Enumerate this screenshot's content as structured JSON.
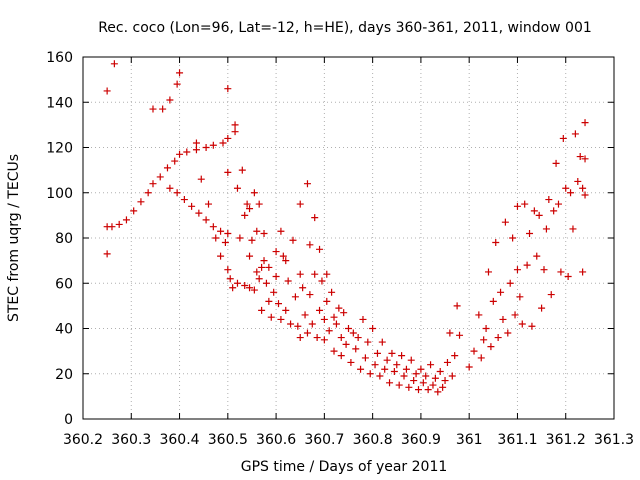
{
  "chart_data": {
    "type": "scatter",
    "title": "Rec. coco (Lon=96, Lat=-12, h=HE), days 360-361, 2011, window 001",
    "xlabel": "GPS time / Days of year 2011",
    "ylabel": "STEC from uqrg / TECUs",
    "xlim": [
      360.2,
      361.3
    ],
    "ylim": [
      0,
      160
    ],
    "xticks": [
      "360.2",
      "360.3",
      "360.4",
      "360.5",
      "360.6",
      "360.7",
      "360.8",
      "360.9",
      "361",
      "361.1",
      "361.2",
      "361.3"
    ],
    "yticks": [
      "0",
      "20",
      "40",
      "60",
      "80",
      "100",
      "120",
      "140",
      "160"
    ],
    "grid": true,
    "marker": "+",
    "color": "#cc0000",
    "points": [
      [
        360.25,
        145
      ],
      [
        360.25,
        73
      ],
      [
        360.25,
        85
      ],
      [
        360.265,
        157
      ],
      [
        360.26,
        85
      ],
      [
        360.275,
        86
      ],
      [
        360.29,
        88
      ],
      [
        360.305,
        92
      ],
      [
        360.32,
        96
      ],
      [
        360.335,
        100
      ],
      [
        360.345,
        104
      ],
      [
        360.345,
        137
      ],
      [
        360.365,
        137
      ],
      [
        360.36,
        107
      ],
      [
        360.375,
        111
      ],
      [
        360.38,
        141
      ],
      [
        360.38,
        102
      ],
      [
        360.39,
        114
      ],
      [
        360.395,
        148
      ],
      [
        360.4,
        153
      ],
      [
        360.4,
        117
      ],
      [
        360.395,
        100
      ],
      [
        360.41,
        97
      ],
      [
        360.415,
        118
      ],
      [
        360.425,
        94
      ],
      [
        360.435,
        122
      ],
      [
        360.435,
        119
      ],
      [
        360.44,
        91
      ],
      [
        360.445,
        106
      ],
      [
        360.455,
        120
      ],
      [
        360.455,
        88
      ],
      [
        360.46,
        95
      ],
      [
        360.47,
        121
      ],
      [
        360.47,
        85
      ],
      [
        360.475,
        80
      ],
      [
        360.485,
        72
      ],
      [
        360.485,
        83
      ],
      [
        360.49,
        122
      ],
      [
        360.495,
        78
      ],
      [
        360.5,
        146
      ],
      [
        360.5,
        124
      ],
      [
        360.5,
        109
      ],
      [
        360.5,
        82
      ],
      [
        360.5,
        66
      ],
      [
        360.505,
        62
      ],
      [
        360.51,
        58
      ],
      [
        360.515,
        130
      ],
      [
        360.515,
        127
      ],
      [
        360.52,
        102
      ],
      [
        360.52,
        60
      ],
      [
        360.525,
        80
      ],
      [
        360.53,
        110
      ],
      [
        360.535,
        90
      ],
      [
        360.535,
        59
      ],
      [
        360.54,
        95
      ],
      [
        360.545,
        93
      ],
      [
        360.545,
        72
      ],
      [
        360.545,
        58
      ],
      [
        360.55,
        79
      ],
      [
        360.555,
        100
      ],
      [
        360.555,
        57
      ],
      [
        360.56,
        83
      ],
      [
        360.56,
        65
      ],
      [
        360.565,
        95
      ],
      [
        360.565,
        62
      ],
      [
        360.57,
        48
      ],
      [
        360.57,
        67
      ],
      [
        360.575,
        82
      ],
      [
        360.575,
        70
      ],
      [
        360.58,
        60
      ],
      [
        360.585,
        52
      ],
      [
        360.585,
        67
      ],
      [
        360.59,
        45
      ],
      [
        360.595,
        56
      ],
      [
        360.6,
        74
      ],
      [
        360.6,
        63
      ],
      [
        360.605,
        51
      ],
      [
        360.61,
        44
      ],
      [
        360.61,
        83
      ],
      [
        360.615,
        72
      ],
      [
        360.62,
        48
      ],
      [
        360.62,
        70
      ],
      [
        360.625,
        61
      ],
      [
        360.63,
        42
      ],
      [
        360.635,
        79
      ],
      [
        360.64,
        54
      ],
      [
        360.645,
        41
      ],
      [
        360.65,
        95
      ],
      [
        360.65,
        64
      ],
      [
        360.65,
        36
      ],
      [
        360.655,
        58
      ],
      [
        360.66,
        46
      ],
      [
        360.665,
        104
      ],
      [
        360.665,
        38
      ],
      [
        360.67,
        77
      ],
      [
        360.67,
        55
      ],
      [
        360.675,
        42
      ],
      [
        360.68,
        89
      ],
      [
        360.68,
        64
      ],
      [
        360.685,
        36
      ],
      [
        360.69,
        75
      ],
      [
        360.69,
        48
      ],
      [
        360.695,
        61
      ],
      [
        360.7,
        44
      ],
      [
        360.7,
        35
      ],
      [
        360.705,
        64
      ],
      [
        360.705,
        52
      ],
      [
        360.71,
        39
      ],
      [
        360.715,
        56
      ],
      [
        360.72,
        45
      ],
      [
        360.72,
        30
      ],
      [
        360.725,
        42
      ],
      [
        360.73,
        49
      ],
      [
        360.735,
        36
      ],
      [
        360.735,
        28
      ],
      [
        360.74,
        47
      ],
      [
        360.745,
        33
      ],
      [
        360.75,
        40
      ],
      [
        360.755,
        25
      ],
      [
        360.76,
        38
      ],
      [
        360.765,
        31
      ],
      [
        360.77,
        36
      ],
      [
        360.775,
        22
      ],
      [
        360.78,
        44
      ],
      [
        360.785,
        27
      ],
      [
        360.79,
        34
      ],
      [
        360.795,
        20
      ],
      [
        360.8,
        40
      ],
      [
        360.805,
        24
      ],
      [
        360.81,
        29
      ],
      [
        360.815,
        19
      ],
      [
        360.82,
        34
      ],
      [
        360.825,
        22
      ],
      [
        360.83,
        26
      ],
      [
        360.835,
        16
      ],
      [
        360.84,
        29
      ],
      [
        360.845,
        21
      ],
      [
        360.85,
        24
      ],
      [
        360.855,
        15
      ],
      [
        360.86,
        28
      ],
      [
        360.865,
        19
      ],
      [
        360.87,
        22
      ],
      [
        360.875,
        14
      ],
      [
        360.88,
        26
      ],
      [
        360.885,
        17
      ],
      [
        360.89,
        20
      ],
      [
        360.895,
        13
      ],
      [
        360.9,
        22
      ],
      [
        360.905,
        16
      ],
      [
        360.91,
        19
      ],
      [
        360.915,
        13
      ],
      [
        360.92,
        24
      ],
      [
        360.925,
        15
      ],
      [
        360.93,
        18
      ],
      [
        360.935,
        12
      ],
      [
        360.94,
        21
      ],
      [
        360.945,
        14
      ],
      [
        360.95,
        17
      ],
      [
        360.955,
        25
      ],
      [
        360.96,
        38
      ],
      [
        360.965,
        19
      ],
      [
        360.97,
        28
      ],
      [
        360.975,
        50
      ],
      [
        360.98,
        37
      ],
      [
        361.0,
        23
      ],
      [
        361.01,
        30
      ],
      [
        361.02,
        46
      ],
      [
        361.025,
        27
      ],
      [
        361.03,
        35
      ],
      [
        361.035,
        40
      ],
      [
        361.04,
        65
      ],
      [
        361.045,
        32
      ],
      [
        361.05,
        52
      ],
      [
        361.055,
        78
      ],
      [
        361.06,
        36
      ],
      [
        361.065,
        56
      ],
      [
        361.07,
        44
      ],
      [
        361.075,
        87
      ],
      [
        361.08,
        38
      ],
      [
        361.085,
        60
      ],
      [
        361.09,
        80
      ],
      [
        361.095,
        46
      ],
      [
        361.1,
        94
      ],
      [
        361.1,
        66
      ],
      [
        361.105,
        54
      ],
      [
        361.11,
        42
      ],
      [
        361.115,
        95
      ],
      [
        361.12,
        68
      ],
      [
        361.125,
        82
      ],
      [
        361.13,
        41
      ],
      [
        361.135,
        92
      ],
      [
        361.14,
        72
      ],
      [
        361.145,
        90
      ],
      [
        361.15,
        49
      ],
      [
        361.155,
        66
      ],
      [
        361.16,
        84
      ],
      [
        361.165,
        97
      ],
      [
        361.17,
        55
      ],
      [
        361.175,
        92
      ],
      [
        361.18,
        113
      ],
      [
        361.185,
        95
      ],
      [
        361.19,
        65
      ],
      [
        361.195,
        124
      ],
      [
        361.2,
        102
      ],
      [
        361.205,
        63
      ],
      [
        361.21,
        100
      ],
      [
        361.215,
        84
      ],
      [
        361.22,
        126
      ],
      [
        361.225,
        105
      ],
      [
        361.23,
        116
      ],
      [
        361.235,
        102
      ],
      [
        361.235,
        65
      ],
      [
        361.24,
        131
      ],
      [
        361.24,
        99
      ],
      [
        361.24,
        115
      ]
    ]
  }
}
